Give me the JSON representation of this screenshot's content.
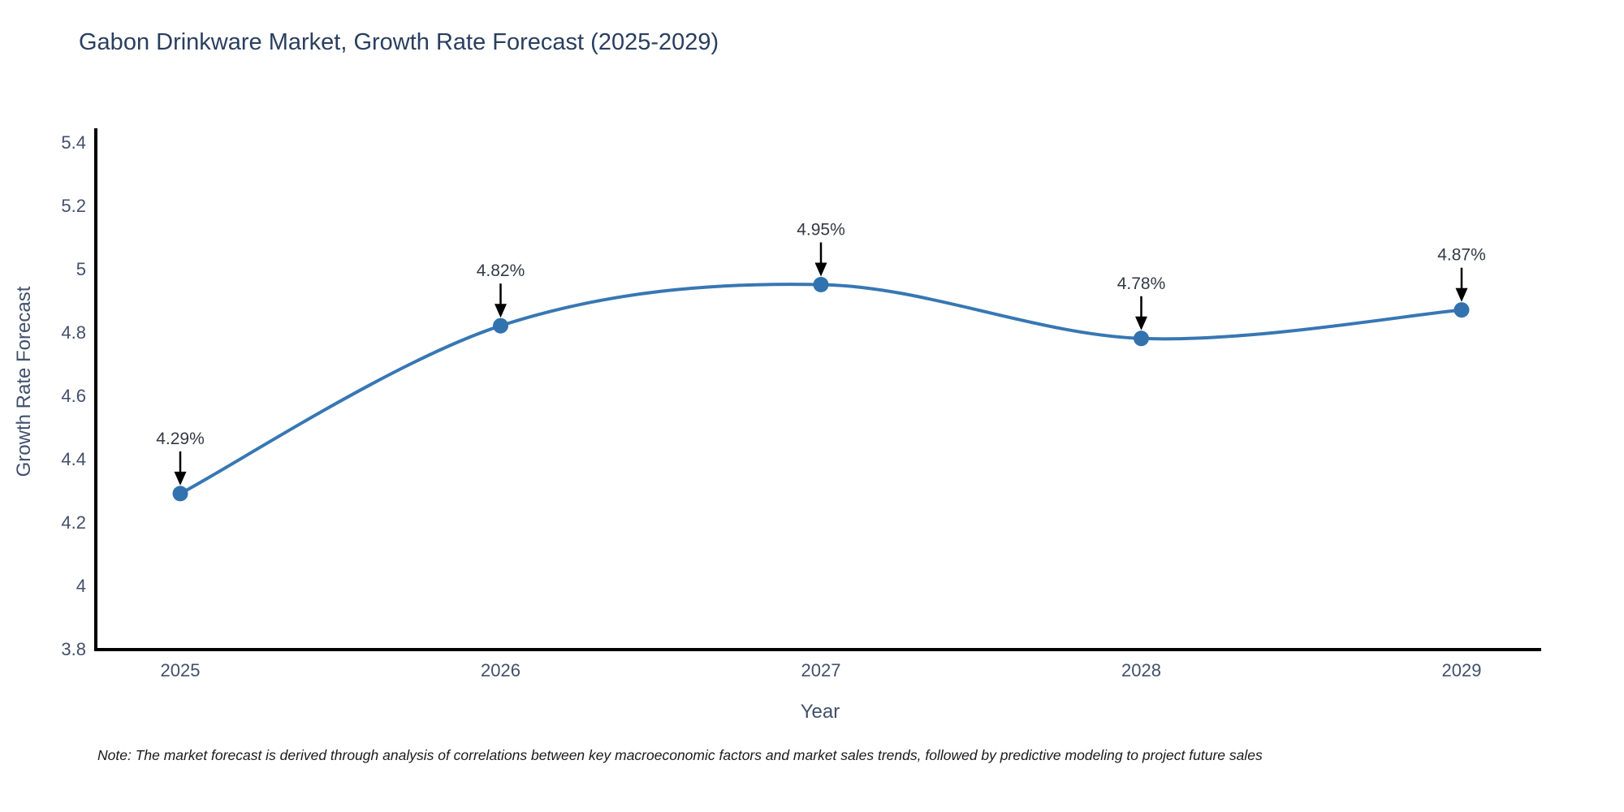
{
  "title": {
    "text": "Gabon Drinkware Market, Growth Rate Forecast (2025-2029)",
    "color": "#2a3f5f"
  },
  "note": {
    "text": "Note: The market forecast is derived through analysis of correlations between key macroeconomic factors and market sales trends, followed by predictive modeling to project future sales"
  },
  "chart_data": {
    "type": "line",
    "line_shape": "spline",
    "categories": [
      "2025",
      "2026",
      "2027",
      "2028",
      "2029"
    ],
    "values": [
      4.29,
      4.82,
      4.95,
      4.78,
      4.87
    ],
    "point_labels": [
      "4.29%",
      "4.82%",
      "4.95%",
      "4.78%",
      "4.87%"
    ],
    "title": "Gabon Drinkware Market, Growth Rate Forecast (2025-2029)",
    "xlabel": "Year",
    "ylabel": "Growth Rate Forecast",
    "ylim": [
      3.8,
      5.4
    ],
    "yticks": [
      3.8,
      4,
      4.2,
      4.4,
      4.6,
      4.8,
      5,
      5.2,
      5.4
    ],
    "grid": false,
    "legend_position": "none",
    "colors": {
      "line": "#3777b4",
      "marker": "#3272ae",
      "axis_line": "#000000",
      "tick_label": "#42506b",
      "annotation_text": "#333a45",
      "annotation_arrow": "#000000"
    }
  }
}
